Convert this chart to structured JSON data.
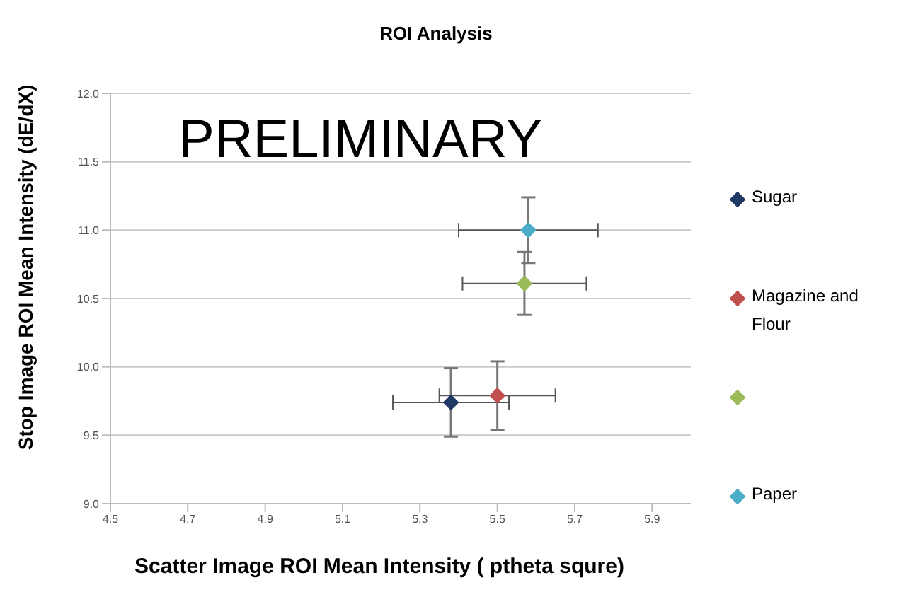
{
  "chart_data": {
    "type": "scatter",
    "title": "ROI Analysis",
    "xlabel": "Scatter Image ROI Mean Intensity ( ptheta squre)",
    "ylabel": "Stop Image ROI Mean Intensity (dE/dX)",
    "annotations": [
      "PRELIMINARY"
    ],
    "series": [
      {
        "name": "Sugar",
        "color": "#1f3864",
        "x": [
          5.38
        ],
        "values": [
          9.74
        ],
        "errors": [
          0.25
        ],
        "xerrors": [
          0.15
        ]
      },
      {
        "name": "Magazine and Flour",
        "color": "#c0504d",
        "x": [
          5.5
        ],
        "values": [
          9.79
        ],
        "errors": [
          0.25
        ],
        "xerrors": [
          0.15
        ]
      },
      {
        "color": "#9bbb59",
        "x": [
          5.57
        ],
        "values": [
          10.61
        ],
        "errors": [
          0.23
        ],
        "xerrors": [
          0.16
        ]
      },
      {
        "name": "Paper",
        "color": "#4bacc6",
        "x": [
          5.58
        ],
        "values": [
          11.0
        ],
        "errors": [
          0.24
        ],
        "xerrors": [
          0.18
        ]
      }
    ],
    "xlim": [
      4.5,
      6.0
    ],
    "xticks": [
      4.5,
      4.7,
      4.9,
      5.1,
      5.3,
      5.5,
      5.7,
      5.9
    ],
    "ylim": [
      9.0,
      12.0
    ],
    "yticks": [
      {
        "value": 9,
        "label": "9.0"
      },
      9.5,
      {
        "value": 10,
        "label": "10.0"
      },
      10.5,
      {
        "value": 11,
        "label": "11.0"
      },
      11.5,
      {
        "value": 12,
        "label": "12.0"
      }
    ],
    "grid": "y",
    "legend": "right",
    "marker": "diamond"
  }
}
